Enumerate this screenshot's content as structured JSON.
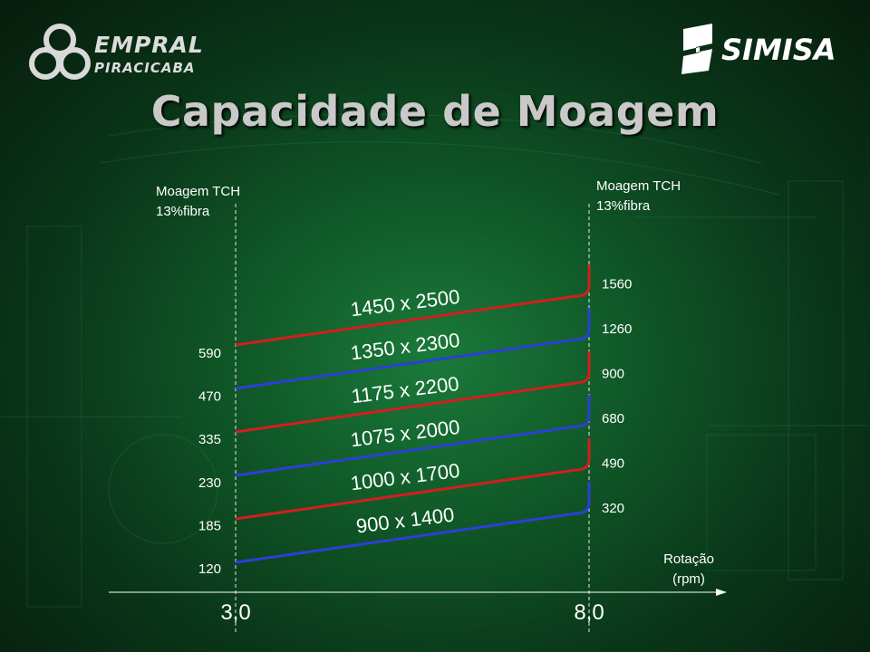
{
  "header": {
    "left_logo": {
      "line1": "EMPRAL",
      "line2": "PIRACICABA",
      "icon": "three-rings-icon"
    },
    "right_logo": {
      "text": "SIMISA",
      "icon": "simisa-s-icon"
    },
    "title": "Capacidade de Moagem"
  },
  "chart_data": {
    "type": "line",
    "x": [
      3.0,
      8.0
    ],
    "x_ticks": [
      "3,0",
      "8,0"
    ],
    "x_label_line1": "Rotação",
    "x_label_line2": "(rpm)",
    "left_axis_label_line1": "Moagem TCH",
    "left_axis_label_line2": "13%fibra",
    "right_axis_label_line1": "Moagem TCH",
    "right_axis_label_line2": "13%fibra",
    "series": [
      {
        "name": "900 x 1400",
        "values": [
          120,
          320
        ],
        "color": "#2c3fd6"
      },
      {
        "name": "1000 x 1700",
        "values": [
          185,
          490
        ],
        "color": "#d41e1e"
      },
      {
        "name": "1075 x 2000",
        "values": [
          230,
          680
        ],
        "color": "#2c3fd6"
      },
      {
        "name": "1175 x 2200",
        "values": [
          335,
          900
        ],
        "color": "#d41e1e"
      },
      {
        "name": "1350 x 2300",
        "values": [
          470,
          1260
        ],
        "color": "#2c3fd6"
      },
      {
        "name": "1450 x 2500",
        "values": [
          590,
          1560
        ],
        "color": "#d41e1e"
      }
    ]
  }
}
